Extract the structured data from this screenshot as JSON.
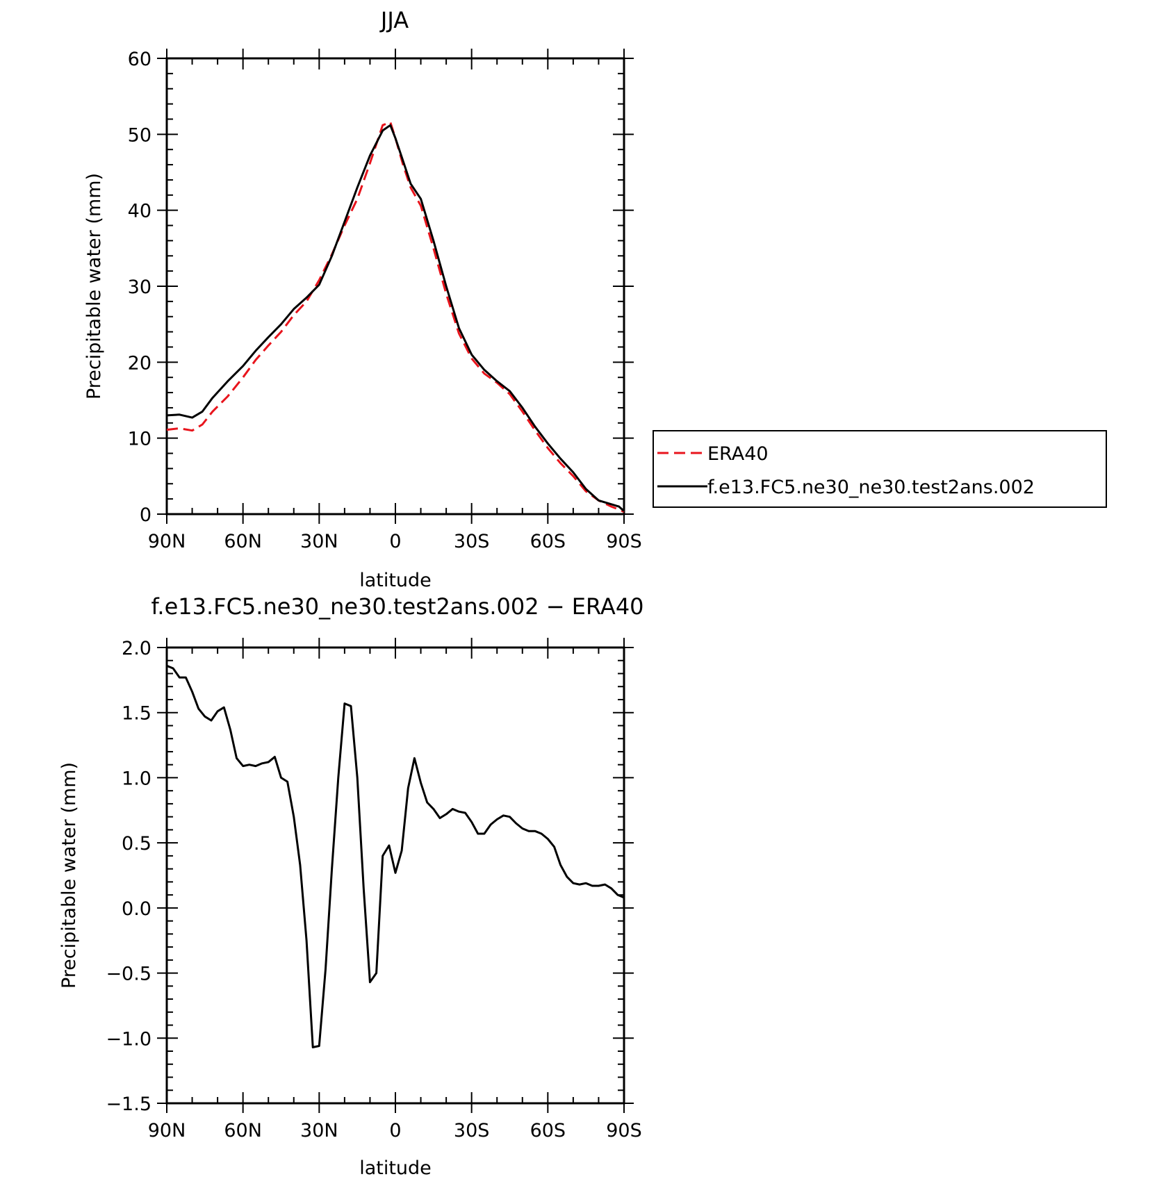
{
  "chart_data": [
    {
      "type": "line",
      "title": "JJA",
      "xlabel": "latitude",
      "ylabel": "Precipitable water (mm)",
      "xlim": [
        90,
        -90
      ],
      "ylim": [
        0,
        60
      ],
      "x_ticks": [
        90,
        60,
        30,
        0,
        -30,
        -60,
        -90
      ],
      "x_tick_labels": [
        "90N",
        "60N",
        "30N",
        "0",
        "30S",
        "60S",
        "90S"
      ],
      "y_ticks": [
        0,
        10,
        20,
        30,
        40,
        50,
        60
      ],
      "y_tick_labels": [
        "0",
        "10",
        "20",
        "30",
        "40",
        "50",
        "60"
      ],
      "legend_position": "right",
      "series": [
        {
          "name": "ERA40",
          "color": "#e8141c",
          "dash": "dashed",
          "points": [
            [
              90,
              11.1
            ],
            [
              85,
              11.3
            ],
            [
              80,
              11.0
            ],
            [
              76,
              11.8
            ],
            [
              72,
              13.5
            ],
            [
              66,
              15.5
            ],
            [
              60,
              18.0
            ],
            [
              55,
              20.3
            ],
            [
              50,
              22.2
            ],
            [
              45,
              24.0
            ],
            [
              40,
              26.2
            ],
            [
              35,
              28.0
            ],
            [
              30,
              30.8
            ],
            [
              25,
              34.2
            ],
            [
              20,
              38.0
            ],
            [
              15,
              41.5
            ],
            [
              10,
              46.2
            ],
            [
              5,
              51.2
            ],
            [
              2,
              51.6
            ],
            [
              0,
              49.5
            ],
            [
              -3,
              46.0
            ],
            [
              -6,
              43.0
            ],
            [
              -10,
              40.6
            ],
            [
              -15,
              35.0
            ],
            [
              -20,
              29.0
            ],
            [
              -25,
              23.8
            ],
            [
              -30,
              20.5
            ],
            [
              -35,
              18.5
            ],
            [
              -40,
              17.3
            ],
            [
              -45,
              15.8
            ],
            [
              -50,
              13.5
            ],
            [
              -55,
              11.0
            ],
            [
              -60,
              8.7
            ],
            [
              -65,
              6.7
            ],
            [
              -70,
              5.0
            ],
            [
              -75,
              3.0
            ],
            [
              -80,
              1.8
            ],
            [
              -85,
              1.0
            ],
            [
              -88,
              0.6
            ],
            [
              -90,
              0.3
            ]
          ]
        },
        {
          "name": "f.e13.FC5.ne30_ne30.test2ans.002",
          "color": "#000000",
          "dash": "solid",
          "points": [
            [
              90,
              13.0
            ],
            [
              85,
              13.1
            ],
            [
              80,
              12.7
            ],
            [
              76,
              13.5
            ],
            [
              72,
              15.3
            ],
            [
              66,
              17.5
            ],
            [
              60,
              19.5
            ],
            [
              55,
              21.5
            ],
            [
              50,
              23.3
            ],
            [
              45,
              25.0
            ],
            [
              40,
              27.0
            ],
            [
              35,
              28.5
            ],
            [
              30,
              30.2
            ],
            [
              25,
              34.0
            ],
            [
              20,
              38.5
            ],
            [
              15,
              43.0
            ],
            [
              10,
              47.2
            ],
            [
              5,
              50.5
            ],
            [
              2,
              51.2
            ],
            [
              0,
              49.5
            ],
            [
              -3,
              46.5
            ],
            [
              -6,
              43.5
            ],
            [
              -10,
              41.5
            ],
            [
              -15,
              36.0
            ],
            [
              -20,
              30.0
            ],
            [
              -25,
              24.5
            ],
            [
              -30,
              21.0
            ],
            [
              -35,
              19.0
            ],
            [
              -40,
              17.5
            ],
            [
              -45,
              16.2
            ],
            [
              -50,
              14.0
            ],
            [
              -55,
              11.5
            ],
            [
              -60,
              9.3
            ],
            [
              -65,
              7.3
            ],
            [
              -70,
              5.5
            ],
            [
              -75,
              3.3
            ],
            [
              -80,
              1.8
            ],
            [
              -85,
              1.3
            ],
            [
              -88,
              1.0
            ],
            [
              -90,
              0.4
            ]
          ]
        }
      ]
    },
    {
      "type": "line",
      "title": "f.e13.FC5.ne30_ne30.test2ans.002 − ERA40",
      "xlabel": "latitude",
      "ylabel": "Precipitable water (mm)",
      "xlim": [
        90,
        -90
      ],
      "ylim": [
        -1.5,
        2.0
      ],
      "x_ticks": [
        90,
        60,
        30,
        0,
        -30,
        -60,
        -90
      ],
      "x_tick_labels": [
        "90N",
        "60N",
        "30N",
        "0",
        "30S",
        "60S",
        "90S"
      ],
      "y_ticks": [
        -1.5,
        -1.0,
        -0.5,
        0.0,
        0.5,
        1.0,
        1.5,
        2.0
      ],
      "y_tick_labels": [
        "−1.5",
        "−1.0",
        "−0.5",
        "0.0",
        "0.5",
        "1.0",
        "1.5",
        "2.0"
      ],
      "series": [
        {
          "name": "",
          "color": "#000000",
          "dash": "solid",
          "points": [
            [
              90,
              1.86
            ],
            [
              87.5,
              1.84
            ],
            [
              85,
              1.77
            ],
            [
              82.5,
              1.77
            ],
            [
              80,
              1.66
            ],
            [
              77.5,
              1.53
            ],
            [
              75,
              1.47
            ],
            [
              72.5,
              1.44
            ],
            [
              70,
              1.51
            ],
            [
              67.5,
              1.54
            ],
            [
              65,
              1.37
            ],
            [
              62.5,
              1.15
            ],
            [
              60,
              1.09
            ],
            [
              57.5,
              1.1
            ],
            [
              55,
              1.09
            ],
            [
              52.5,
              1.11
            ],
            [
              50,
              1.12
            ],
            [
              47.5,
              1.16
            ],
            [
              45,
              1.0
            ],
            [
              42.5,
              0.97
            ],
            [
              40,
              0.7
            ],
            [
              37.5,
              0.33
            ],
            [
              35,
              -0.25
            ],
            [
              32.5,
              -1.07
            ],
            [
              30,
              -1.06
            ],
            [
              27.5,
              -0.47
            ],
            [
              25,
              0.3
            ],
            [
              22.5,
              1.0
            ],
            [
              20,
              1.57
            ],
            [
              17.5,
              1.55
            ],
            [
              15,
              1.0
            ],
            [
              12.5,
              0.15
            ],
            [
              10,
              -0.57
            ],
            [
              7.5,
              -0.5
            ],
            [
              5,
              0.4
            ],
            [
              2.5,
              0.48
            ],
            [
              0,
              0.27
            ],
            [
              -2.5,
              0.44
            ],
            [
              -5,
              0.92
            ],
            [
              -7.5,
              1.15
            ],
            [
              -10,
              0.96
            ],
            [
              -12.5,
              0.81
            ],
            [
              -15,
              0.76
            ],
            [
              -17.5,
              0.69
            ],
            [
              -20,
              0.72
            ],
            [
              -22.5,
              0.76
            ],
            [
              -25,
              0.74
            ],
            [
              -27.5,
              0.73
            ],
            [
              -30,
              0.66
            ],
            [
              -32.5,
              0.57
            ],
            [
              -35,
              0.57
            ],
            [
              -37.5,
              0.64
            ],
            [
              -40,
              0.68
            ],
            [
              -42.5,
              0.71
            ],
            [
              -45,
              0.7
            ],
            [
              -47.5,
              0.65
            ],
            [
              -50,
              0.61
            ],
            [
              -52.5,
              0.59
            ],
            [
              -55,
              0.59
            ],
            [
              -57.5,
              0.57
            ],
            [
              -60,
              0.53
            ],
            [
              -62.5,
              0.47
            ],
            [
              -65,
              0.33
            ],
            [
              -67.5,
              0.24
            ],
            [
              -70,
              0.19
            ],
            [
              -72.5,
              0.18
            ],
            [
              -75,
              0.19
            ],
            [
              -77.5,
              0.17
            ],
            [
              -80,
              0.17
            ],
            [
              -82.5,
              0.18
            ],
            [
              -85,
              0.15
            ],
            [
              -87.5,
              0.1
            ],
            [
              -90,
              0.08
            ]
          ]
        }
      ]
    }
  ]
}
